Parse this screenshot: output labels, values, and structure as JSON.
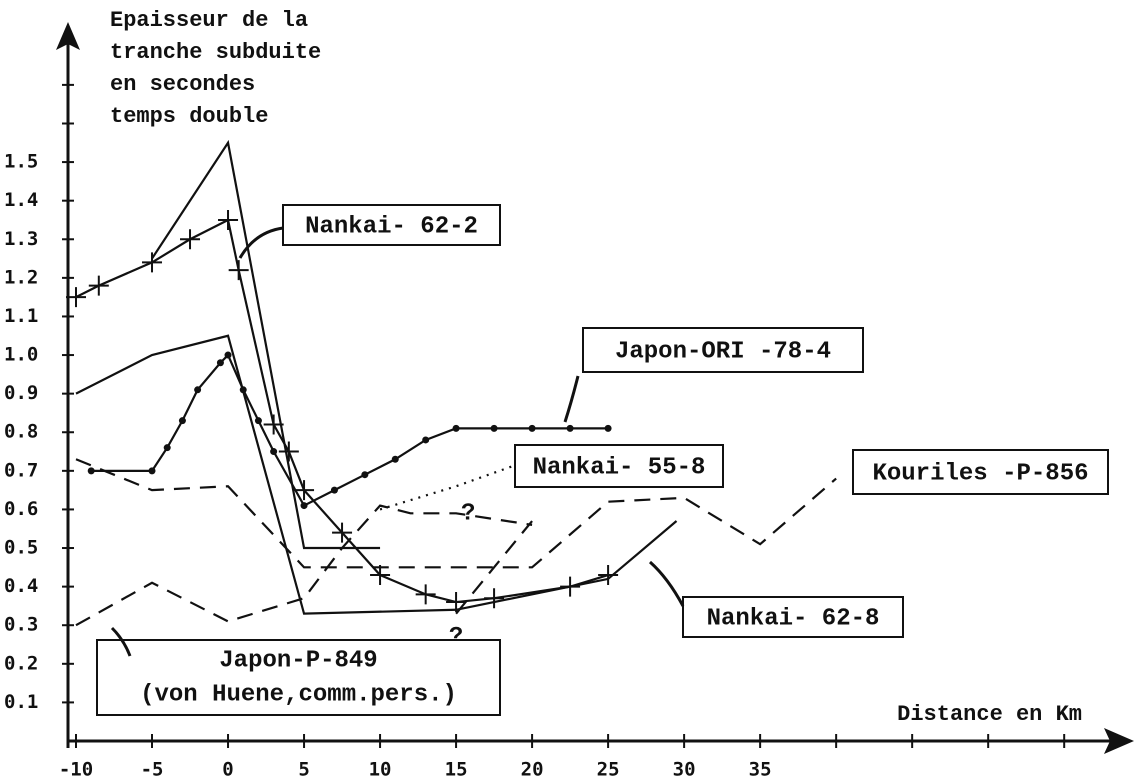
{
  "chart_data": {
    "type": "line",
    "y_label": [
      "Epaisseur de la",
      "tranche subduite",
      "en secondes",
      "temps double"
    ],
    "x_label": "Distance en Km",
    "xlim": [
      -10,
      59
    ],
    "ylim": [
      0,
      1.85
    ],
    "xticks": [
      -10,
      -5,
      0,
      5,
      10,
      15,
      20,
      25,
      30,
      35
    ],
    "xminor": [
      40,
      45,
      50,
      55
    ],
    "yticks": [
      0.1,
      0.2,
      0.3,
      0.4,
      0.5,
      0.6,
      0.7,
      0.8,
      0.9,
      {
        "value": 1,
        "label": "1.0"
      },
      1.1,
      1.2,
      1.3,
      1.4,
      1.5
    ],
    "yminor": [
      1.6,
      1.7
    ],
    "series": [
      {
        "name": "Nankai- 62-2",
        "color": "#111",
        "style": "solid",
        "marker": "cross",
        "x": [
          -10,
          -8.5,
          -5,
          -2.5,
          0,
          0.7,
          3,
          4,
          5,
          7.5,
          10,
          13,
          15,
          17.5,
          22.5,
          25
        ],
        "values": [
          1.15,
          1.18,
          1.24,
          1.3,
          1.35,
          1.22,
          0.82,
          0.75,
          0.65,
          0.54,
          0.43,
          0.38,
          0.36,
          0.37,
          0.4,
          0.43
        ]
      },
      {
        "color": "#111",
        "style": "solid",
        "x": [
          -5,
          0,
          5,
          10
        ],
        "values": [
          1.25,
          1.55,
          0.5,
          0.5
        ]
      },
      {
        "name": "Nankai- 62-8",
        "color": "#111",
        "style": "solid",
        "x": [
          -10,
          -5,
          0,
          5,
          15,
          25,
          29.5
        ],
        "values": [
          0.9,
          1.0,
          1.05,
          0.33,
          0.34,
          0.42,
          0.57
        ]
      },
      {
        "name": "Japon-ORI -78-4",
        "color": "#111",
        "style": "solid",
        "marker": "dot",
        "x": [
          -9,
          -5,
          -4,
          -3,
          -2,
          -0.5,
          0,
          1,
          2,
          3,
          5,
          7,
          9,
          11,
          13,
          15,
          17.5,
          20,
          22.5,
          25
        ],
        "values": [
          0.7,
          0.7,
          0.76,
          0.83,
          0.91,
          0.98,
          1.0,
          0.91,
          0.83,
          0.75,
          0.61,
          0.65,
          0.69,
          0.73,
          0.78,
          0.81,
          0.81,
          0.81,
          0.81,
          0.81
        ]
      },
      {
        "name": "Nankai- 55-8",
        "color": "#111",
        "style": "dotted",
        "x": [
          10,
          15,
          20
        ],
        "values": [
          0.6,
          0.66,
          0.73
        ]
      },
      {
        "name": "Kouriles -P-856",
        "color": "#111",
        "style": "dashed",
        "x": [
          -10,
          -5,
          0,
          5,
          10,
          20,
          25,
          30,
          35,
          40
        ],
        "values": [
          0.73,
          0.65,
          0.66,
          0.45,
          0.45,
          0.45,
          0.62,
          0.63,
          0.51,
          0.68
        ]
      },
      {
        "name": "Japon-P-849",
        "source": "(von Huene,comm.pers.)",
        "color": "#111",
        "style": "dashed",
        "x": [
          -10,
          -5,
          0,
          5,
          7.5,
          10,
          12,
          15,
          20
        ],
        "values": [
          0.3,
          0.41,
          0.31,
          0.37,
          0.5,
          0.61,
          0.59,
          0.59,
          0.56
        ]
      },
      {
        "color": "#111",
        "style": "dashed",
        "x": [
          15,
          17.5,
          20
        ],
        "values": [
          0.33,
          0.45,
          0.57
        ]
      }
    ],
    "annotations": [
      {
        "text": "?",
        "x": 15.8,
        "y": 0.59
      },
      {
        "text": "?",
        "x": 15,
        "y": 0.27
      }
    ]
  }
}
